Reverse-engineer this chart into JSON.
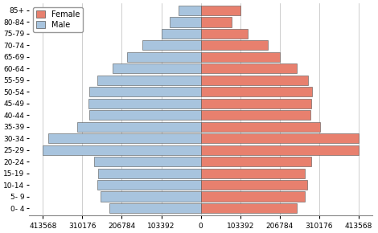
{
  "age_groups": [
    "0- 4",
    "5- 9",
    "10-14",
    "15-19",
    "20-24",
    "25-29",
    "30-34",
    "35-39",
    "40-44",
    "45-49",
    "50-54",
    "55-59",
    "60-64",
    "65-69",
    "70-74",
    "75-79",
    "80-84",
    "85+"
  ],
  "male": [
    240000,
    262000,
    272000,
    268000,
    280000,
    413568,
    400000,
    323000,
    292000,
    295000,
    292000,
    272000,
    232000,
    192000,
    152000,
    103392,
    82000,
    58000
  ],
  "female": [
    252000,
    272000,
    278000,
    272000,
    290000,
    413568,
    413568,
    312000,
    286000,
    290000,
    292000,
    280000,
    252000,
    207000,
    175000,
    122000,
    80000,
    103392
  ],
  "male_color": "#a8c4de",
  "female_color": "#e8806e",
  "background_color": "#ffffff",
  "grid_color": "#bbbbbb",
  "xticks": [
    -413568,
    -310176,
    -206784,
    -103392,
    0,
    103392,
    206784,
    310176,
    413568
  ],
  "xtick_labels": [
    "413568",
    "310176",
    "206784",
    "103392",
    "0",
    "103392",
    "206784",
    "310176",
    "413568"
  ],
  "bar_edge_color": "#555555",
  "bar_height": 0.85
}
